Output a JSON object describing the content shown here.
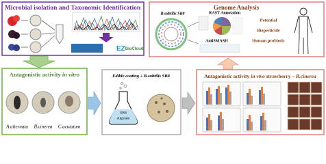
{
  "panels": {
    "isolation": {
      "title": "Microbial isolation and Taxonomic Identification",
      "logo": [
        "EZ",
        "BioCloud"
      ]
    },
    "genome": {
      "title": "Genome Analysis",
      "strain": "B.subtilis SB8",
      "rast": "RAST Annotation",
      "antismash": "AntiSMASH",
      "potential": [
        "Potential",
        "Biopesticide",
        "Human probiotic"
      ]
    },
    "in_vitro": {
      "title": [
        "Antagonistic activity ",
        "in vitro"
      ],
      "pathogens": [
        "A.alternata",
        "B.cinerea",
        "C.acutatum"
      ]
    },
    "coating": {
      "title": [
        "Edible coating + ",
        "B.subtilis",
        " SB8"
      ],
      "flask": [
        "SB8",
        "Alginate"
      ]
    },
    "in_vivo": {
      "title": [
        "Antagonistic activity ",
        "in vivo",
        " strawberry – ",
        "B.cinerea"
      ]
    }
  }
}
